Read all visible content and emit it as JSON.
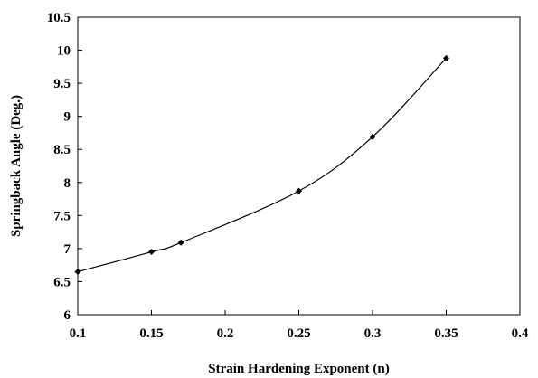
{
  "chart_data": {
    "type": "line",
    "title": "",
    "xlabel": "Strain Hardening Exponent (n)",
    "ylabel": "Springback Angle (Deg.)",
    "xlim": [
      0.1,
      0.4
    ],
    "ylim": [
      6,
      10.5
    ],
    "x_ticks": [
      "0.1",
      "0.15",
      "0.2",
      "0.25",
      "0.3",
      "0.35",
      "0.4"
    ],
    "y_ticks": [
      "6",
      "6.5",
      "7",
      "7.5",
      "8",
      "8.5",
      "9",
      "9.5",
      "10",
      "10.5"
    ],
    "grid": false,
    "legend": "none",
    "marker": "diamond",
    "color": "#000000",
    "smooth": true,
    "series": [
      {
        "x": [
          0.1,
          0.15,
          0.17,
          0.25,
          0.3,
          0.35
        ],
        "y": [
          6.65,
          6.95,
          7.09,
          7.87,
          8.69,
          9.88
        ]
      }
    ]
  }
}
